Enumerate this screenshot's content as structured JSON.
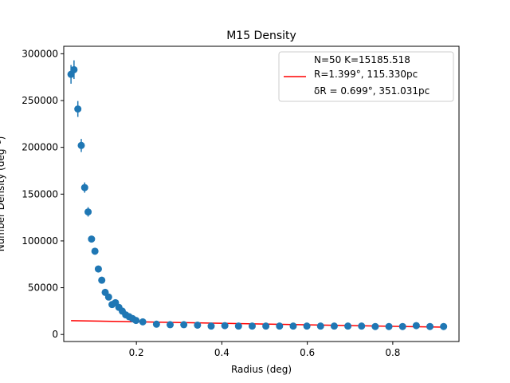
{
  "chart_data": {
    "type": "scatter",
    "title": "M15 Density",
    "xlabel": "Radius (deg)",
    "ylabel": "Number Density (deg⁻²)",
    "xlim": [
      0.03,
      0.955
    ],
    "ylim": [
      -7500,
      308000
    ],
    "xticks": [
      0.2,
      0.4,
      0.6,
      0.8
    ],
    "xtick_labels": [
      "0.2",
      "0.4",
      "0.6",
      "0.8"
    ],
    "yticks": [
      0,
      50000,
      100000,
      150000,
      200000,
      250000,
      300000
    ],
    "ytick_labels": [
      "0",
      "50000",
      "100000",
      "150000",
      "200000",
      "250000",
      "300000"
    ],
    "grid": false,
    "legend_position": "top-right",
    "colors": {
      "points": "#1f77b4",
      "fit": "#ff0000"
    },
    "series": [
      {
        "kind": "points-with-error",
        "x": [
          0.047,
          0.054,
          0.063,
          0.071,
          0.079,
          0.087,
          0.095,
          0.103,
          0.111,
          0.119,
          0.127,
          0.135,
          0.143,
          0.151,
          0.159,
          0.167,
          0.175,
          0.183,
          0.191,
          0.199,
          0.215,
          0.247,
          0.279,
          0.311,
          0.343,
          0.375,
          0.407,
          0.439,
          0.471,
          0.503,
          0.535,
          0.567,
          0.599,
          0.631,
          0.663,
          0.695,
          0.727,
          0.759,
          0.791,
          0.823,
          0.855,
          0.887,
          0.919
        ],
        "y": [
          278000,
          283000,
          241000,
          202000,
          157000,
          131000,
          102000,
          89000,
          70000,
          58000,
          45000,
          40000,
          32000,
          34000,
          29000,
          25000,
          21000,
          19000,
          17000,
          15000,
          13500,
          11000,
          10500,
          10500,
          10000,
          9000,
          9500,
          9000,
          9000,
          9000,
          9000,
          9000,
          9000,
          9000,
          9000,
          9000,
          9000,
          8500,
          8500,
          8500,
          9500,
          8500,
          8500
        ],
        "err": [
          10000,
          10000,
          8500,
          7000,
          5500,
          5000,
          3500,
          3000,
          2000,
          2000,
          1500,
          1500,
          1000,
          1000,
          1000,
          1000,
          800,
          800,
          800,
          800,
          600,
          500,
          500,
          500,
          500,
          400,
          400,
          400,
          400,
          400,
          400,
          400,
          400,
          400,
          400,
          400,
          400,
          400,
          400,
          400,
          400,
          400,
          400
        ]
      },
      {
        "kind": "fit-line",
        "x": [
          0.047,
          0.919
        ],
        "y": [
          14800,
          7800
        ]
      }
    ],
    "legend": {
      "line1": "N=50   K=15185.518",
      "line2": "R=1.399°, 115.330pc",
      "line3": "δR = 0.699°, 351.031pc"
    }
  }
}
